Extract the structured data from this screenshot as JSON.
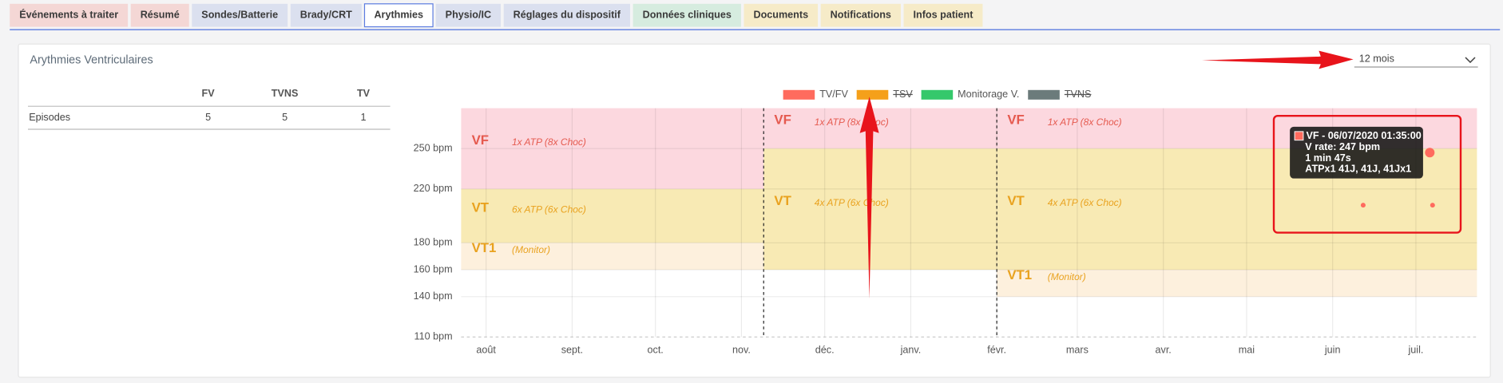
{
  "tabs": {
    "items": [
      {
        "label": "Événements à traiter",
        "color": "#f4d7d5"
      },
      {
        "label": "Résumé",
        "color": "#f4d7d5"
      },
      {
        "label": "Sondes/Batterie",
        "color": "#dbe0ef"
      },
      {
        "label": "Brady/CRT",
        "color": "#dbe0ef"
      },
      {
        "label": "Arythmies",
        "color": "#ffffff"
      },
      {
        "label": "Physio/IC",
        "color": "#dbe0ef"
      },
      {
        "label": "Réglages du dispositif",
        "color": "#dbe0ef"
      },
      {
        "label": "Données cliniques",
        "color": "#d6ecdf"
      },
      {
        "label": "Documents",
        "color": "#f6ebc8"
      },
      {
        "label": "Notifications",
        "color": "#f6ebc8"
      },
      {
        "label": "Infos patient",
        "color": "#f6ebc8"
      }
    ],
    "active": 4
  },
  "panel": {
    "title": "Arythmies Ventriculaires",
    "period": "12 mois"
  },
  "table": {
    "header": [
      "FV",
      "TVNS",
      "TV"
    ],
    "rows": [
      {
        "label": "Episodes",
        "cells": [
          5,
          5,
          1
        ]
      }
    ]
  },
  "chart_data": {
    "type": "scatter",
    "ylim": [
      110,
      280
    ],
    "yticks": [
      {
        "value": 110,
        "label": "110 bpm"
      },
      {
        "value": 140,
        "label": "140 bpm"
      },
      {
        "value": 160,
        "label": "160 bpm"
      },
      {
        "value": 180,
        "label": "180 bpm"
      },
      {
        "value": 220,
        "label": "220 bpm"
      },
      {
        "value": 250,
        "label": "250 bpm"
      }
    ],
    "xlim": [
      "2019-07-23",
      "2020-07-23"
    ],
    "xticks": [
      {
        "value": "2019-08-01",
        "label": "août"
      },
      {
        "value": "2019-09-01",
        "label": "sept."
      },
      {
        "value": "2019-10-01",
        "label": "oct."
      },
      {
        "value": "2019-11-01",
        "label": "nov."
      },
      {
        "value": "2019-12-01",
        "label": "déc."
      },
      {
        "value": "2020-01-01",
        "label": "janv."
      },
      {
        "value": "2020-02-01",
        "label": "févr."
      },
      {
        "value": "2020-03-01",
        "label": "mars"
      },
      {
        "value": "2020-04-01",
        "label": "avr."
      },
      {
        "value": "2020-05-01",
        "label": "mai"
      },
      {
        "value": "2020-06-01",
        "label": "juin"
      },
      {
        "value": "2020-07-01",
        "label": "juil."
      }
    ],
    "grid": true,
    "zones": [
      {
        "start": "2019-07-23",
        "end": "2019-11-09",
        "bands": [
          {
            "name": "VF",
            "note": "1x ATP (8x Choc)",
            "from": 220,
            "to": 280,
            "color": "#fcd8df",
            "text_color": "#e55a4f"
          },
          {
            "name": "VT",
            "note": "6x ATP (6x Choc)",
            "from": 180,
            "to": 220,
            "color": "#f8eab4",
            "text_color": "#e9a21f"
          },
          {
            "name": "VT1",
            "note": "(Monitor)",
            "from": 160,
            "to": 180,
            "color": "#fdf0dd",
            "text_color": "#e9a21f"
          }
        ]
      },
      {
        "start": "2019-11-09",
        "end": "2020-02-01",
        "bands": [
          {
            "name": "VF",
            "note": "1x ATP (8x Choc)",
            "from": 250,
            "to": 280,
            "color": "#fcd8df",
            "text_color": "#e55a4f"
          },
          {
            "name": "VT",
            "note": "4x ATP (6x Choc)",
            "from": 160,
            "to": 250,
            "color": "#f8eab4",
            "text_color": "#e9a21f"
          }
        ]
      },
      {
        "start": "2020-02-01",
        "end": "2020-07-23",
        "bands": [
          {
            "name": "VF",
            "note": "1x ATP (8x Choc)",
            "from": 250,
            "to": 280,
            "color": "#fcd8df",
            "text_color": "#e55a4f"
          },
          {
            "name": "VT",
            "note": "4x ATP (6x Choc)",
            "from": 160,
            "to": 250,
            "color": "#f8eab4",
            "text_color": "#e9a21f"
          },
          {
            "name": "VT1",
            "note": "(Monitor)",
            "from": 140,
            "to": 160,
            "color": "#fdf0dd",
            "text_color": "#e9a21f"
          }
        ]
      }
    ],
    "series": [
      {
        "name": "TV/FV",
        "color": "#ff6b5e",
        "hidden": false,
        "x": [
          "2020-07-06",
          "2020-06-12",
          "2020-07-07"
        ],
        "values": [
          247,
          208,
          208
        ]
      },
      {
        "name": "TSV",
        "color": "#f5a01a",
        "hidden": true,
        "x": [],
        "values": []
      },
      {
        "name": "Monitorage V.",
        "color": "#35c86b",
        "hidden": false,
        "x": [],
        "values": []
      },
      {
        "name": "TVNS",
        "color": "#6b7b7b",
        "hidden": true,
        "x": [],
        "values": []
      }
    ],
    "tooltip": {
      "point": 0,
      "lines": [
        "VF - 06/07/2020 01:35:00",
        "V rate: 247 bpm",
        "1 min 47s",
        "ATPx1 41J, 41J, 41Jx1"
      ]
    }
  }
}
